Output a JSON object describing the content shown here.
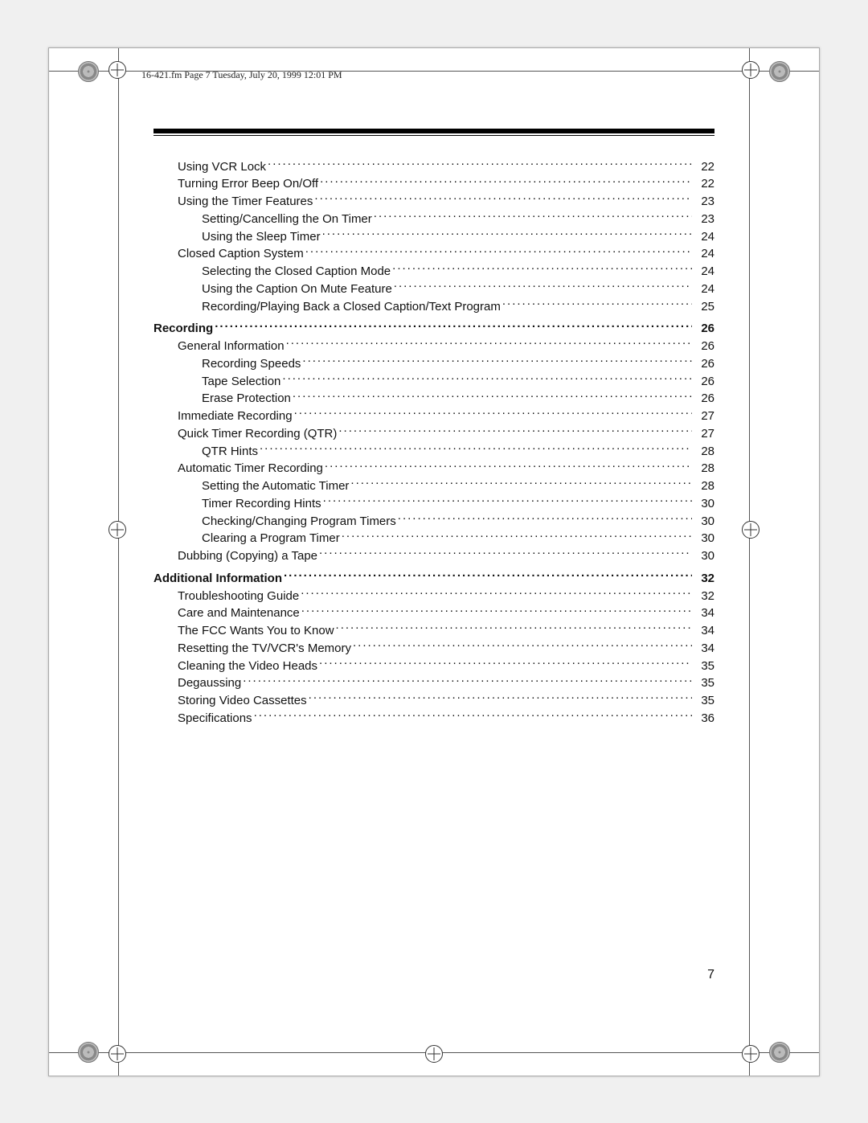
{
  "header": "16-421.fm  Page 7  Tuesday, July 20, 1999   12:01 PM",
  "page_number": "7",
  "toc": [
    {
      "level": 1,
      "title": "Using VCR Lock",
      "page": "22"
    },
    {
      "level": 1,
      "title": "Turning Error Beep On/Off",
      "page": "22"
    },
    {
      "level": 1,
      "title": "Using the Timer Features",
      "page": "23"
    },
    {
      "level": 2,
      "title": "Setting/Cancelling the On Timer",
      "page": "23"
    },
    {
      "level": 2,
      "title": "Using the Sleep Timer",
      "page": "24"
    },
    {
      "level": 1,
      "title": "Closed Caption System",
      "page": "24"
    },
    {
      "level": 2,
      "title": "Selecting the Closed Caption Mode",
      "page": "24"
    },
    {
      "level": 2,
      "title": "Using the Caption On Mute Feature",
      "page": "24"
    },
    {
      "level": 2,
      "title": "Recording/Playing Back a Closed Caption/Text Program",
      "page": "25"
    },
    {
      "gap": true
    },
    {
      "level": 0,
      "title": "Recording",
      "page": "26"
    },
    {
      "level": 1,
      "title": "General Information",
      "page": "26"
    },
    {
      "level": 2,
      "title": "Recording Speeds",
      "page": "26"
    },
    {
      "level": 2,
      "title": "Tape Selection",
      "page": "26"
    },
    {
      "level": 2,
      "title": "Erase Protection",
      "page": "26"
    },
    {
      "level": 1,
      "title": "Immediate Recording",
      "page": "27"
    },
    {
      "level": 1,
      "title": "Quick Timer Recording (QTR)",
      "page": "27"
    },
    {
      "level": 2,
      "title": "QTR Hints",
      "page": "28"
    },
    {
      "level": 1,
      "title": "Automatic Timer Recording",
      "page": "28"
    },
    {
      "level": 2,
      "title": "Setting the Automatic Timer",
      "page": "28"
    },
    {
      "level": 2,
      "title": "Timer Recording Hints",
      "page": "30"
    },
    {
      "level": 2,
      "title": "Checking/Changing Program Timers",
      "page": "30"
    },
    {
      "level": 2,
      "title": "Clearing a Program Timer",
      "page": "30"
    },
    {
      "level": 1,
      "title": "Dubbing (Copying) a Tape",
      "page": "30"
    },
    {
      "gap": true
    },
    {
      "level": 0,
      "title": "Additional Information",
      "page": "32"
    },
    {
      "level": 1,
      "title": "Troubleshooting Guide",
      "page": "32"
    },
    {
      "level": 1,
      "title": "Care and Maintenance",
      "page": "34"
    },
    {
      "level": 1,
      "title": "The FCC Wants You to Know",
      "page": "34"
    },
    {
      "level": 1,
      "title": "Resetting the TV/VCR's Memory",
      "page": "34"
    },
    {
      "level": 1,
      "title": "Cleaning the Video Heads",
      "page": "35"
    },
    {
      "level": 1,
      "title": "Degaussing",
      "page": "35"
    },
    {
      "level": 1,
      "title": "Storing Video Cassettes",
      "page": "35"
    },
    {
      "level": 1,
      "title": "Specifications",
      "page": "36"
    }
  ]
}
